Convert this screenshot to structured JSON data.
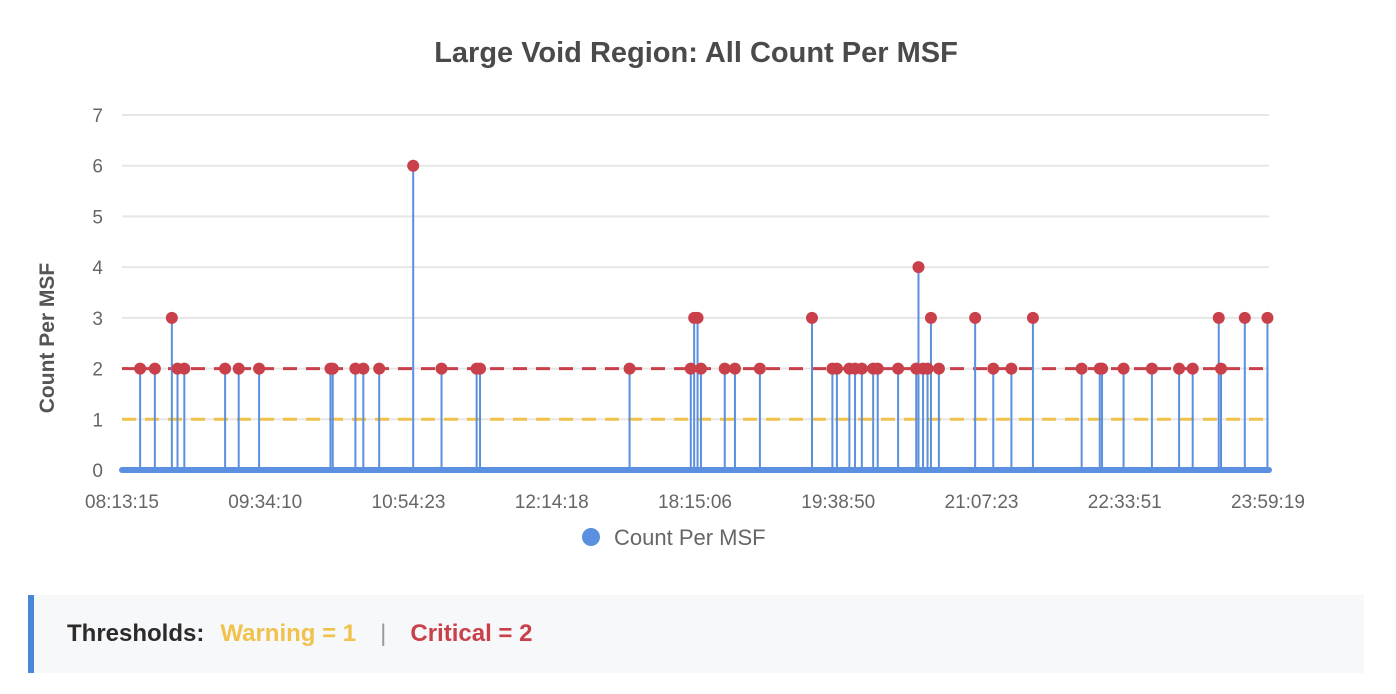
{
  "thresholds": {
    "label": "Thresholds:",
    "warning_text": "Warning = 1",
    "separator": "|",
    "critical_text": "Critical = 2",
    "warning_value": 1,
    "critical_value": 2,
    "warning_color": "#f0c24b",
    "critical_color": "#c9404a"
  },
  "chart_data": {
    "type": "line",
    "title": "Large Void Region: All Count Per MSF",
    "ylabel": "Count Per MSF",
    "xlabel": "",
    "ylim": [
      0,
      7
    ],
    "yticks": [
      0,
      1,
      2,
      3,
      4,
      5,
      6,
      7
    ],
    "xtick_labels": [
      "08:13:15",
      "09:34:10",
      "10:54:23",
      "12:14:18",
      "18:15:06",
      "19:38:50",
      "21:07:23",
      "22:33:51",
      "23:59:19"
    ],
    "grid": true,
    "legend_position": "bottom",
    "series_color": "#5b8fdf",
    "point_color": "#c9404a",
    "series": [
      {
        "name": "Count Per MSF",
        "spikes": [
          {
            "x": 0.016,
            "y": 2
          },
          {
            "x": 0.029,
            "y": 2
          },
          {
            "x": 0.044,
            "y": 3
          },
          {
            "x": 0.049,
            "y": 2
          },
          {
            "x": 0.055,
            "y": 2
          },
          {
            "x": 0.091,
            "y": 2
          },
          {
            "x": 0.103,
            "y": 2
          },
          {
            "x": 0.121,
            "y": 2
          },
          {
            "x": 0.184,
            "y": 2
          },
          {
            "x": 0.186,
            "y": 2
          },
          {
            "x": 0.206,
            "y": 2
          },
          {
            "x": 0.213,
            "y": 2
          },
          {
            "x": 0.227,
            "y": 2
          },
          {
            "x": 0.257,
            "y": 6
          },
          {
            "x": 0.282,
            "y": 2
          },
          {
            "x": 0.313,
            "y": 2
          },
          {
            "x": 0.316,
            "y": 2
          },
          {
            "x": 0.448,
            "y": 2
          },
          {
            "x": 0.502,
            "y": 2
          },
          {
            "x": 0.505,
            "y": 3
          },
          {
            "x": 0.508,
            "y": 3
          },
          {
            "x": 0.511,
            "y": 2
          },
          {
            "x": 0.532,
            "y": 2
          },
          {
            "x": 0.541,
            "y": 2
          },
          {
            "x": 0.563,
            "y": 2
          },
          {
            "x": 0.609,
            "y": 3
          },
          {
            "x": 0.627,
            "y": 2
          },
          {
            "x": 0.631,
            "y": 2
          },
          {
            "x": 0.642,
            "y": 2
          },
          {
            "x": 0.647,
            "y": 2
          },
          {
            "x": 0.653,
            "y": 2
          },
          {
            "x": 0.663,
            "y": 2
          },
          {
            "x": 0.667,
            "y": 2
          },
          {
            "x": 0.685,
            "y": 2
          },
          {
            "x": 0.701,
            "y": 2
          },
          {
            "x": 0.703,
            "y": 4
          },
          {
            "x": 0.707,
            "y": 2
          },
          {
            "x": 0.711,
            "y": 2
          },
          {
            "x": 0.714,
            "y": 3
          },
          {
            "x": 0.721,
            "y": 2
          },
          {
            "x": 0.753,
            "y": 3
          },
          {
            "x": 0.769,
            "y": 2
          },
          {
            "x": 0.785,
            "y": 2
          },
          {
            "x": 0.804,
            "y": 3
          },
          {
            "x": 0.847,
            "y": 2
          },
          {
            "x": 0.863,
            "y": 2
          },
          {
            "x": 0.865,
            "y": 2
          },
          {
            "x": 0.884,
            "y": 2
          },
          {
            "x": 0.909,
            "y": 2
          },
          {
            "x": 0.933,
            "y": 2
          },
          {
            "x": 0.945,
            "y": 2
          },
          {
            "x": 0.968,
            "y": 3
          },
          {
            "x": 0.97,
            "y": 2
          },
          {
            "x": 0.991,
            "y": 3
          },
          {
            "x": 1.011,
            "y": 3
          }
        ]
      }
    ]
  }
}
